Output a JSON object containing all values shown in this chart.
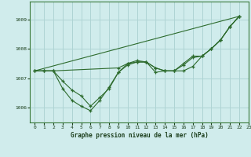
{
  "title": "Graphe pression niveau de la mer (hPa)",
  "bg_color": "#d0ecec",
  "grid_color": "#aed4d4",
  "line_color": "#2d6b2d",
  "xlim": [
    -0.5,
    23
  ],
  "ylim": [
    1005.5,
    1009.6
  ],
  "yticks": [
    1006,
    1007,
    1008,
    1009
  ],
  "xticks": [
    0,
    1,
    2,
    3,
    4,
    5,
    6,
    7,
    8,
    9,
    10,
    11,
    12,
    13,
    14,
    15,
    16,
    17,
    18,
    19,
    20,
    21,
    22,
    23
  ],
  "series": [
    {
      "x": [
        0,
        1,
        2,
        3,
        4,
        5,
        6,
        7,
        8,
        9,
        10,
        11,
        12,
        13,
        14,
        15,
        16,
        17,
        18,
        19,
        20,
        21,
        22
      ],
      "y": [
        1007.25,
        1007.25,
        1007.25,
        1006.9,
        1006.6,
        1006.4,
        1006.05,
        1006.35,
        1006.65,
        1007.2,
        1007.45,
        1007.55,
        1007.55,
        1007.35,
        1007.25,
        1007.25,
        1007.25,
        1007.4,
        1007.75,
        1008.0,
        1008.3,
        1008.75,
        1009.1
      ]
    },
    {
      "x": [
        0,
        1,
        2,
        3,
        4,
        5,
        6,
        7,
        8,
        9,
        10,
        11,
        12,
        13,
        14,
        15,
        16,
        17,
        18,
        19,
        20,
        21,
        22
      ],
      "y": [
        1007.25,
        1007.25,
        1007.25,
        1006.65,
        1006.25,
        1006.05,
        1005.9,
        1006.25,
        1006.7,
        1007.2,
        1007.5,
        1007.6,
        1007.55,
        1007.2,
        1007.25,
        1007.25,
        1007.45,
        1007.7,
        1007.75,
        1008.0,
        1008.3,
        1008.75,
        1009.1
      ]
    },
    {
      "x": [
        0,
        22
      ],
      "y": [
        1007.25,
        1009.1
      ]
    },
    {
      "x": [
        0,
        1,
        2,
        9,
        10,
        11,
        12,
        13,
        14,
        15,
        16,
        17,
        18,
        19,
        20,
        21,
        22
      ],
      "y": [
        1007.25,
        1007.25,
        1007.25,
        1007.35,
        1007.5,
        1007.55,
        1007.55,
        1007.35,
        1007.25,
        1007.25,
        1007.5,
        1007.75,
        1007.75,
        1008.0,
        1008.3,
        1008.75,
        1009.1
      ]
    }
  ],
  "marker_series": [
    0,
    1,
    3
  ]
}
